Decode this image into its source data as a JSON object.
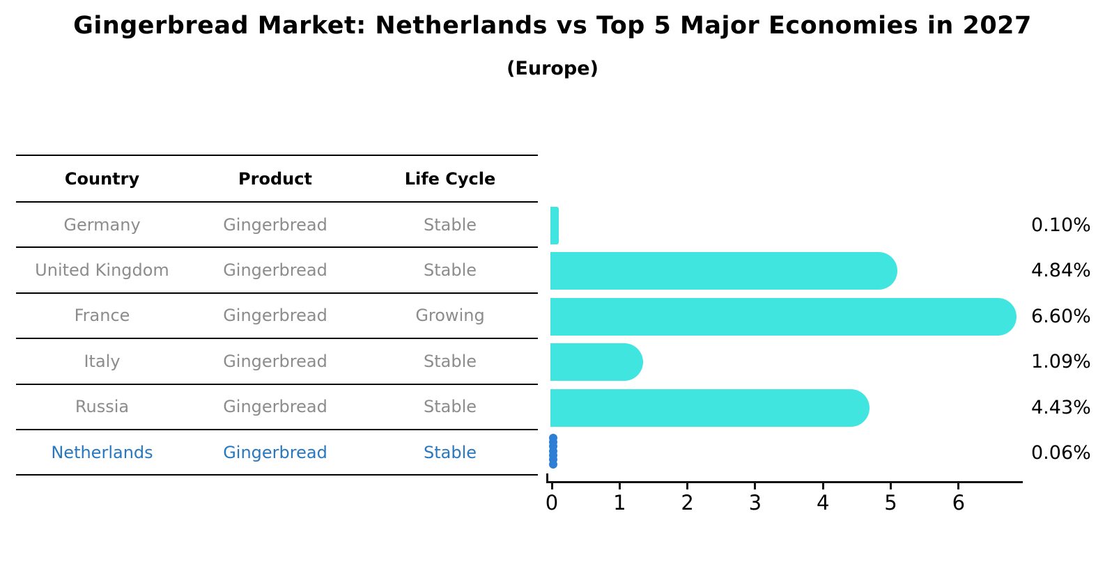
{
  "header": {
    "title": "Gingerbread Market: Netherlands vs Top 5 Major Economies in 2027",
    "subtitle": "(Europe)"
  },
  "table": {
    "headers": [
      "Country",
      "Product",
      "Life Cycle"
    ]
  },
  "chart_data": {
    "type": "bar",
    "orientation": "horizontal",
    "title": "Gingerbread Market: Netherlands vs Top 5 Major Economies in 2027",
    "subtitle": "(Europe)",
    "xlabel": "",
    "ylabel": "",
    "xlim": [
      0,
      6.95
    ],
    "x_ticks": [
      0,
      1,
      2,
      3,
      4,
      5,
      6
    ],
    "grid": false,
    "legend": "none",
    "bar_color": "#40e5e0",
    "highlight_color": "#2f7ed6",
    "categories": [
      "Germany",
      "United Kingdom",
      "France",
      "Italy",
      "Russia",
      "Netherlands"
    ],
    "values": [
      0.1,
      4.84,
      6.6,
      1.09,
      4.43,
      0.06
    ],
    "rows": [
      {
        "country": "Germany",
        "product": "Gingerbread",
        "life_cycle": "Stable",
        "value": 0.1,
        "value_label": "0.10%",
        "highlighted": false
      },
      {
        "country": "United Kingdom",
        "product": "Gingerbread",
        "life_cycle": "Stable",
        "value": 4.84,
        "value_label": "4.84%",
        "highlighted": false
      },
      {
        "country": "France",
        "product": "Gingerbread",
        "life_cycle": "Growing",
        "value": 6.6,
        "value_label": "6.60%",
        "highlighted": false
      },
      {
        "country": "Italy",
        "product": "Gingerbread",
        "life_cycle": "Stable",
        "value": 1.09,
        "value_label": "1.09%",
        "highlighted": false
      },
      {
        "country": "Russia",
        "product": "Gingerbread",
        "life_cycle": "Stable",
        "value": 4.43,
        "value_label": "4.43%",
        "highlighted": false
      },
      {
        "country": "Netherlands",
        "product": "Gingerbread",
        "life_cycle": "Stable",
        "value": 0.06,
        "value_label": "0.06%",
        "highlighted": true
      }
    ]
  },
  "colors": {
    "background": "#ffffff",
    "row_text": "#8c8c8c",
    "highlight_text": "#2878c0",
    "table_line": "#000000",
    "axis": "#111111",
    "value_label": "#000000"
  }
}
